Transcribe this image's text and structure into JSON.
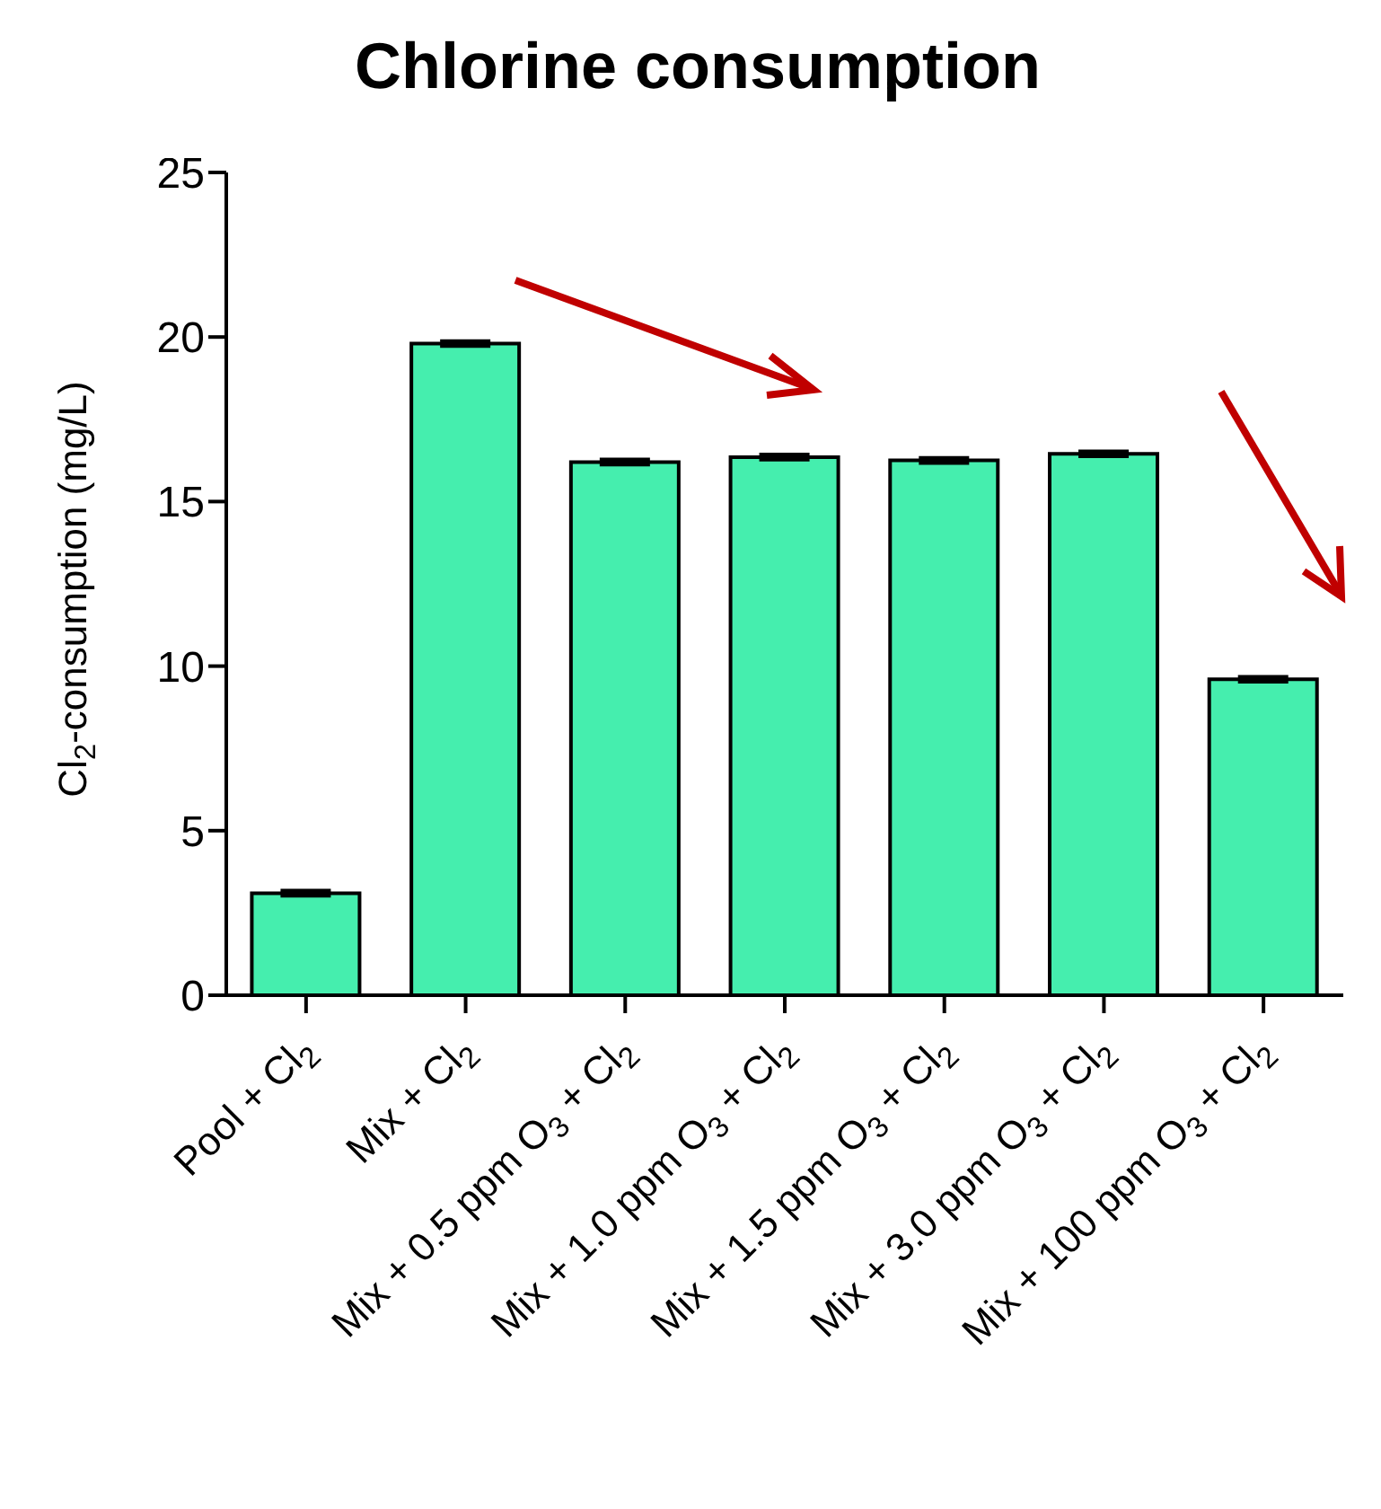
{
  "chart_data": {
    "type": "bar",
    "title": "Chlorine consumption",
    "ylabel": "Cl$_{2}$-consumption (mg/L)",
    "categories": [
      "Pool + Cl$_{2}$",
      "Mix + Cl$_{2}$",
      "Mix + 0.5 ppm O$_{3}$ + Cl$_{2}$",
      "Mix + 1.0 ppm O$_{3}$ + Cl$_{2}$",
      "Mix + 1.5 ppm O$_{3}$ + Cl$_{2}$",
      "Mix + 3.0 ppm O$_{3}$ + Cl$_{2}$",
      "Mix + 100 ppm O$_{3}$ + Cl$_{2}$"
    ],
    "values": [
      3.1,
      19.8,
      16.2,
      16.35,
      16.25,
      16.45,
      9.6
    ],
    "errors": [
      0.05,
      0.05,
      0.05,
      0.05,
      0.05,
      0.05,
      0.05
    ],
    "color": "#45eeae",
    "ylim": [
      0,
      25
    ],
    "yticks": [
      0,
      5,
      10,
      15,
      20,
      25
    ]
  }
}
